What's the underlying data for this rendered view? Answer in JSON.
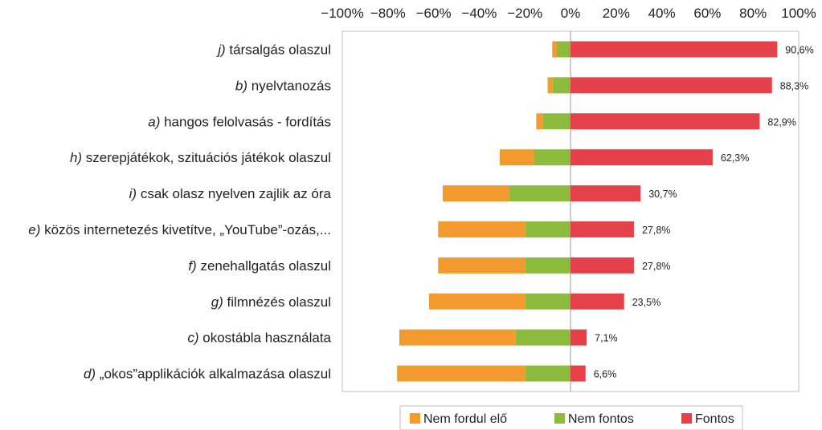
{
  "chart_data": {
    "type": "bar",
    "orientation": "horizontal-diverging",
    "title": "",
    "xlabel": "",
    "ylabel": "",
    "xlim": [
      -100,
      100
    ],
    "grid": false,
    "legend_position": "bottom",
    "x_tick_labels": [
      "−100%",
      "−80%",
      "−60%",
      "−40%",
      "−20%",
      "0%",
      "20%",
      "40%",
      "60%",
      "80%",
      "100%"
    ],
    "x_ticks": [
      -100,
      -80,
      -60,
      -40,
      -20,
      0,
      20,
      40,
      60,
      80,
      100
    ],
    "categories": [
      {
        "prefix": "j)",
        "text": " társalgás olaszul"
      },
      {
        "prefix": "b)",
        "text": " nyelvtanozás"
      },
      {
        "prefix": "a)",
        "text": " hangos felolvasás - fordítás"
      },
      {
        "prefix": "h)",
        "text": " szerepjátékok, szituációs játékok olaszul"
      },
      {
        "prefix": "i)",
        "text": " csak olasz nyelven zajlik az óra"
      },
      {
        "prefix": "e)",
        "text": " közös internetezés kivetítve, „YouTube”-ozás,..."
      },
      {
        "prefix": "f)",
        "text": " zenehallgatás olaszul"
      },
      {
        "prefix": "g)",
        "text": " filmnézés olaszul"
      },
      {
        "prefix": "c)",
        "text": " okostábla használata"
      },
      {
        "prefix": "d)",
        "text": " „okos”applikációk alkalmazása olaszul"
      }
    ],
    "series": [
      {
        "name": "Nem fordul elő",
        "color": "#F39A2E",
        "side": "negative",
        "values": [
          2,
          2,
          3,
          15,
          29,
          38,
          38,
          42,
          51,
          56
        ]
      },
      {
        "name": "Nem fontos",
        "color": "#8DBB3D",
        "side": "negative",
        "values": [
          6,
          8,
          12,
          16,
          27,
          20,
          20,
          20,
          24,
          20
        ]
      },
      {
        "name": "Fontos",
        "color": "#E5414A",
        "side": "positive",
        "values": [
          90.6,
          88.3,
          82.9,
          62.3,
          30.7,
          27.8,
          27.8,
          23.5,
          7.1,
          6.6
        ]
      }
    ],
    "data_labels": [
      "90,6%",
      "88,3%",
      "82,9%",
      "62,3%",
      "30,7%",
      "27,8%",
      "27,8%",
      "23,5%",
      "7,1%",
      "6,6%"
    ]
  }
}
